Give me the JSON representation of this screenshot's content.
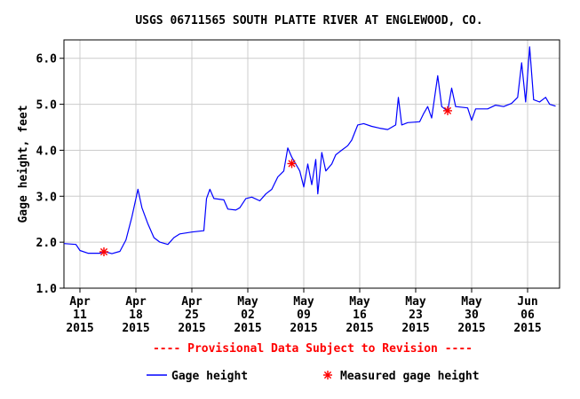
{
  "chart_data": {
    "type": "line",
    "title": "USGS 06711565 SOUTH PLATTE RIVER AT ENGLEWOOD, CO.",
    "ylabel": "Gage height, feet",
    "xlabel": "",
    "ylim": [
      1.0,
      6.4
    ],
    "xlim": [
      "2015-04-09",
      "2015-06-10"
    ],
    "grid": true,
    "yticks": [
      {
        "value": 1.0,
        "label": "1.0"
      },
      {
        "value": 2.0,
        "label": "2.0"
      },
      {
        "value": 3.0,
        "label": "3.0"
      },
      {
        "value": 4.0,
        "label": "4.0"
      },
      {
        "value": 5.0,
        "label": "5.0"
      },
      {
        "value": 6.0,
        "label": "6.0"
      }
    ],
    "xticks": [
      {
        "date": "2015-04-11",
        "month": "Apr",
        "day": "11",
        "year": "2015"
      },
      {
        "date": "2015-04-18",
        "month": "Apr",
        "day": "18",
        "year": "2015"
      },
      {
        "date": "2015-04-25",
        "month": "Apr",
        "day": "25",
        "year": "2015"
      },
      {
        "date": "2015-05-02",
        "month": "May",
        "day": "02",
        "year": "2015"
      },
      {
        "date": "2015-05-09",
        "month": "May",
        "day": "09",
        "year": "2015"
      },
      {
        "date": "2015-05-16",
        "month": "May",
        "day": "16",
        "year": "2015"
      },
      {
        "date": "2015-05-23",
        "month": "May",
        "day": "23",
        "year": "2015"
      },
      {
        "date": "2015-05-30",
        "month": "May",
        "day": "30",
        "year": "2015"
      },
      {
        "date": "2015-06-06",
        "month": "Jun",
        "day": "06",
        "year": "2015"
      }
    ],
    "series": [
      {
        "name": "Gage height",
        "color": "#0000ff",
        "points": [
          [
            "2015-04-09T00:00",
            1.97
          ],
          [
            "2015-04-10T12:00",
            1.95
          ],
          [
            "2015-04-11T00:00",
            1.82
          ],
          [
            "2015-04-12T00:00",
            1.76
          ],
          [
            "2015-04-13T12:00",
            1.76
          ],
          [
            "2015-04-14T00:00",
            1.8
          ],
          [
            "2015-04-15T00:00",
            1.75
          ],
          [
            "2015-04-16T00:00",
            1.8
          ],
          [
            "2015-04-16T18:00",
            2.05
          ],
          [
            "2015-04-17T12:00",
            2.55
          ],
          [
            "2015-04-18T06:00",
            3.15
          ],
          [
            "2015-04-18T18:00",
            2.75
          ],
          [
            "2015-04-19T12:00",
            2.4
          ],
          [
            "2015-04-20T06:00",
            2.1
          ],
          [
            "2015-04-21T00:00",
            2.0
          ],
          [
            "2015-04-22T00:00",
            1.95
          ],
          [
            "2015-04-22T18:00",
            2.1
          ],
          [
            "2015-04-23T12:00",
            2.18
          ],
          [
            "2015-04-25T00:00",
            2.22
          ],
          [
            "2015-04-26T12:00",
            2.25
          ],
          [
            "2015-04-26T20:00",
            2.95
          ],
          [
            "2015-04-27T06:00",
            3.15
          ],
          [
            "2015-04-27T18:00",
            2.95
          ],
          [
            "2015-04-29T00:00",
            2.92
          ],
          [
            "2015-04-29T12:00",
            2.72
          ],
          [
            "2015-04-30T12:00",
            2.7
          ],
          [
            "2015-05-01T00:00",
            2.75
          ],
          [
            "2015-05-01T18:00",
            2.95
          ],
          [
            "2015-05-02T12:00",
            2.98
          ],
          [
            "2015-05-03T12:00",
            2.9
          ],
          [
            "2015-05-04T06:00",
            3.05
          ],
          [
            "2015-05-05T00:00",
            3.15
          ],
          [
            "2015-05-05T18:00",
            3.42
          ],
          [
            "2015-05-06T12:00",
            3.55
          ],
          [
            "2015-05-07T00:00",
            4.05
          ],
          [
            "2015-05-07T12:00",
            3.85
          ],
          [
            "2015-05-08T00:00",
            3.7
          ],
          [
            "2015-05-08T12:00",
            3.55
          ],
          [
            "2015-05-09T00:00",
            3.2
          ],
          [
            "2015-05-09T12:00",
            3.7
          ],
          [
            "2015-05-10T00:00",
            3.25
          ],
          [
            "2015-05-10T12:00",
            3.8
          ],
          [
            "2015-05-10T18:00",
            3.05
          ],
          [
            "2015-05-11T06:00",
            3.95
          ],
          [
            "2015-05-11T18:00",
            3.55
          ],
          [
            "2015-05-12T12:00",
            3.7
          ],
          [
            "2015-05-13T00:00",
            3.9
          ],
          [
            "2015-05-13T18:00",
            4.0
          ],
          [
            "2015-05-14T12:00",
            4.1
          ],
          [
            "2015-05-15T00:00",
            4.22
          ],
          [
            "2015-05-15T18:00",
            4.55
          ],
          [
            "2015-05-16T12:00",
            4.58
          ],
          [
            "2015-05-17T12:00",
            4.52
          ],
          [
            "2015-05-18T12:00",
            4.48
          ],
          [
            "2015-05-19T12:00",
            4.45
          ],
          [
            "2015-05-20T12:00",
            4.55
          ],
          [
            "2015-05-20T20:00",
            5.15
          ],
          [
            "2015-05-21T06:00",
            4.55
          ],
          [
            "2015-05-22T00:00",
            4.6
          ],
          [
            "2015-05-23T12:00",
            4.62
          ],
          [
            "2015-05-24T00:00",
            4.8
          ],
          [
            "2015-05-24T12:00",
            4.95
          ],
          [
            "2015-05-25T00:00",
            4.7
          ],
          [
            "2015-05-25T18:00",
            5.62
          ],
          [
            "2015-05-26T06:00",
            4.95
          ],
          [
            "2015-05-27T00:00",
            4.85
          ],
          [
            "2015-05-27T12:00",
            5.35
          ],
          [
            "2015-05-28T00:00",
            4.95
          ],
          [
            "2015-05-29T12:00",
            4.92
          ],
          [
            "2015-05-30T00:00",
            4.65
          ],
          [
            "2015-05-30T12:00",
            4.9
          ],
          [
            "2015-06-01T00:00",
            4.9
          ],
          [
            "2015-06-02T00:00",
            4.98
          ],
          [
            "2015-06-03T00:00",
            4.95
          ],
          [
            "2015-06-04T00:00",
            5.02
          ],
          [
            "2015-06-04T18:00",
            5.15
          ],
          [
            "2015-06-05T06:00",
            5.9
          ],
          [
            "2015-06-05T18:00",
            5.05
          ],
          [
            "2015-06-06T06:00",
            6.25
          ],
          [
            "2015-06-06T18:00",
            5.1
          ],
          [
            "2015-06-07T12:00",
            5.05
          ],
          [
            "2015-06-08T06:00",
            5.15
          ],
          [
            "2015-06-08T18:00",
            5.0
          ],
          [
            "2015-06-09T12:00",
            4.96
          ]
        ]
      },
      {
        "name": "Measured gage height",
        "color": "#ff0000",
        "marker": "asterisk",
        "points": [
          [
            "2015-04-14T00:00",
            1.79
          ],
          [
            "2015-05-07T12:00",
            3.71
          ],
          [
            "2015-05-27T00:00",
            4.86
          ]
        ]
      }
    ],
    "annotation": "---- Provisional Data Subject to Revision ----",
    "legend_position": "bottom"
  }
}
